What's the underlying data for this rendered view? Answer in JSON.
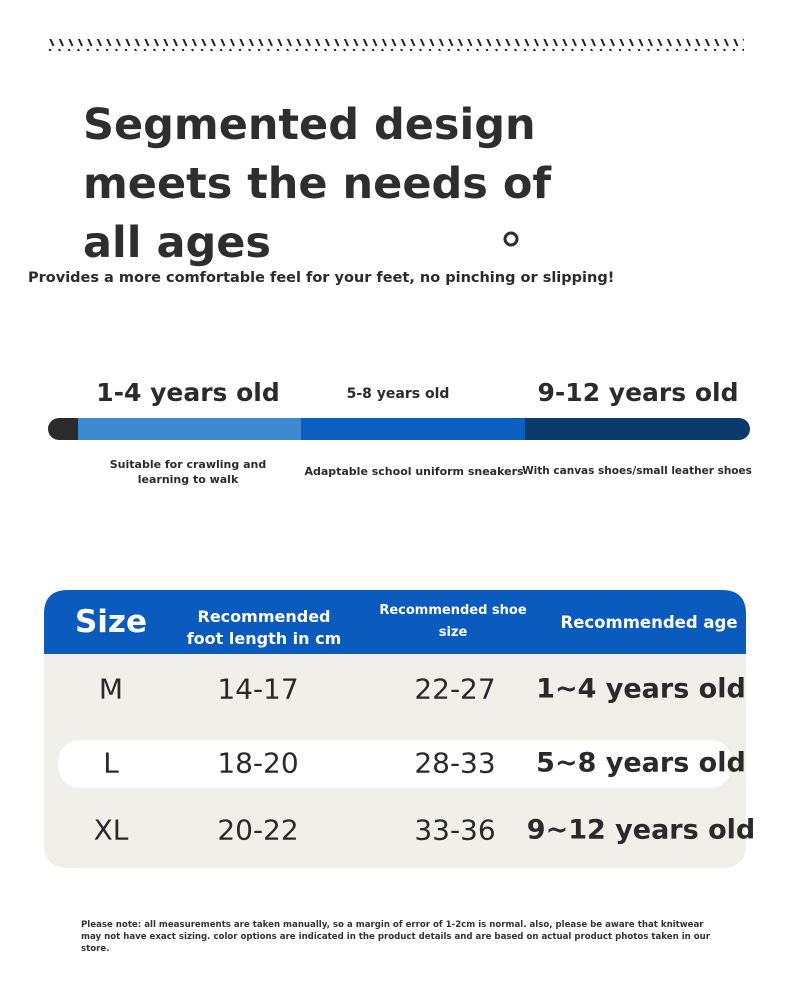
{
  "headline": {
    "lines": [
      "Segmented design",
      "meets the needs of",
      "all ages"
    ]
  },
  "subtitle": "Provides a more comfortable feel for your feet, no pinching or slipping!",
  "stages": [
    {
      "label": "1-4 years old",
      "description": "Suitable for crawling and learning to walk"
    },
    {
      "label": "5-8 years old",
      "description": "Adaptable school uniform sneakers"
    },
    {
      "label": "9-12 years old",
      "description": "With canvas shoes/small leather shoes"
    }
  ],
  "table": {
    "header": [
      "Size",
      "Recommended foot length in cm",
      "Recommended shoe size",
      "Recommended age"
    ],
    "rows": [
      [
        "M",
        "14-17",
        "22-27",
        "1~4 years old"
      ],
      [
        "L",
        "18-20",
        "28-33",
        "5~8 years old"
      ],
      [
        "XL",
        "20-22",
        "33-36",
        "9~12 years old"
      ]
    ]
  },
  "note": "Please note: all measurements are taken manually, so a margin of error of 1-2cm is normal. also, please be aware that knitwear may not have exact sizing. color options are indicated in the product details and are based on actual product photos taken in our store."
}
